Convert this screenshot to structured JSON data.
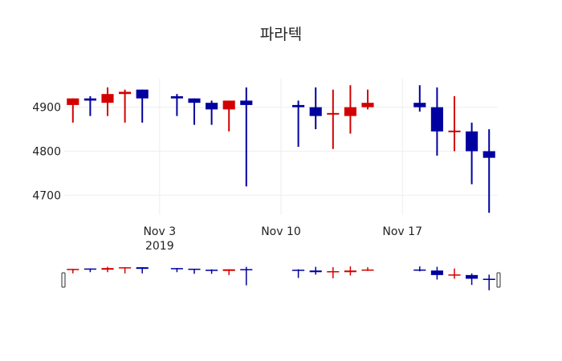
{
  "title": "파라텍",
  "colors": {
    "increasing": "#d40000",
    "decreasing": "#0000a0",
    "grid": "#eeeeee",
    "text": "#222222"
  },
  "chart_data": {
    "type": "candlestick",
    "title": "파라텍",
    "xlabel": "",
    "ylabel": "",
    "ylim": [
      4655,
      4965
    ],
    "grid": true,
    "legend": "none",
    "y_ticks": [
      4700,
      4800,
      4900
    ],
    "x_ticks": [
      {
        "date": "2019-11-03",
        "label": "Nov 3",
        "sublabel": "2019"
      },
      {
        "date": "2019-11-10",
        "label": "Nov 10",
        "sublabel": ""
      },
      {
        "date": "2019-11-17",
        "label": "Nov 17",
        "sublabel": ""
      }
    ],
    "range_slider": true,
    "x_range": [
      "2019-10-28T12:00",
      "2019-11-22T12:00"
    ],
    "candles": [
      {
        "date": "2019-10-29",
        "open": 4905,
        "high": 4920,
        "low": 4865,
        "close": 4920
      },
      {
        "date": "2019-10-30",
        "open": 4920,
        "high": 4925,
        "low": 4880,
        "close": 4915
      },
      {
        "date": "2019-10-31",
        "open": 4910,
        "high": 4945,
        "low": 4880,
        "close": 4930
      },
      {
        "date": "2019-11-01",
        "open": 4930,
        "high": 4940,
        "low": 4865,
        "close": 4935
      },
      {
        "date": "2019-11-02",
        "open": 4940,
        "high": 4940,
        "low": 4865,
        "close": 4920
      },
      {
        "date": "2019-11-04",
        "open": 4925,
        "high": 4930,
        "low": 4880,
        "close": 4920
      },
      {
        "date": "2019-11-05",
        "open": 4920,
        "high": 4920,
        "low": 4860,
        "close": 4910
      },
      {
        "date": "2019-11-06",
        "open": 4910,
        "high": 4915,
        "low": 4860,
        "close": 4895
      },
      {
        "date": "2019-11-07",
        "open": 4895,
        "high": 4915,
        "low": 4845,
        "close": 4915
      },
      {
        "date": "2019-11-08",
        "open": 4915,
        "high": 4945,
        "low": 4720,
        "close": 4905
      },
      {
        "date": "2019-11-11",
        "open": 4905,
        "high": 4915,
        "low": 4810,
        "close": 4900
      },
      {
        "date": "2019-11-12",
        "open": 4900,
        "high": 4945,
        "low": 4850,
        "close": 4880
      },
      {
        "date": "2019-11-13",
        "open": 4885,
        "high": 4940,
        "low": 4805,
        "close": 4885
      },
      {
        "date": "2019-11-14",
        "open": 4880,
        "high": 4950,
        "low": 4840,
        "close": 4900
      },
      {
        "date": "2019-11-15",
        "open": 4900,
        "high": 4940,
        "low": 4895,
        "close": 4910
      },
      {
        "date": "2019-11-18",
        "open": 4910,
        "high": 4950,
        "low": 4890,
        "close": 4900
      },
      {
        "date": "2019-11-19",
        "open": 4900,
        "high": 4945,
        "low": 4790,
        "close": 4845
      },
      {
        "date": "2019-11-20",
        "open": 4845,
        "high": 4925,
        "low": 4800,
        "close": 4845
      },
      {
        "date": "2019-11-21",
        "open": 4845,
        "high": 4865,
        "low": 4725,
        "close": 4800
      },
      {
        "date": "2019-11-22",
        "open": 4800,
        "high": 4850,
        "low": 4660,
        "close": 4785
      }
    ]
  }
}
